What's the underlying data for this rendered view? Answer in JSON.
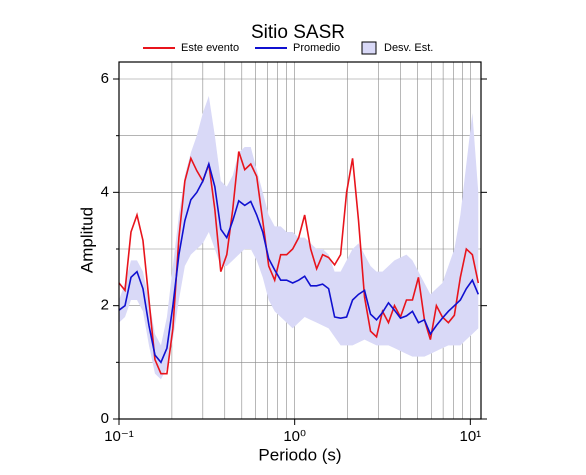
{
  "chart_data": {
    "type": "line",
    "title": "Sitio SASR",
    "xlabel": "Periodo (s)",
    "ylabel": "Amplitud",
    "xscale": "log",
    "xlim": [
      0.1,
      11.5
    ],
    "ylim": [
      0,
      6.3
    ],
    "xticks": [
      {
        "value": 0.1,
        "label": "10⁻¹"
      },
      {
        "value": 1,
        "label": "10⁰"
      },
      {
        "value": 10,
        "label": "10¹"
      }
    ],
    "yticks": [
      0,
      2,
      4,
      6
    ],
    "yminor": [
      1,
      3,
      5
    ],
    "grid": true,
    "legend": "top",
    "x": [
      0.1,
      0.1082,
      0.117,
      0.1266,
      0.1369,
      0.1481,
      0.1602,
      0.1733,
      0.1874,
      0.2027,
      0.2193,
      0.2371,
      0.2565,
      0.2774,
      0.3001,
      0.3246,
      0.3511,
      0.3797,
      0.4107,
      0.4442,
      0.4805,
      0.5197,
      0.5623,
      0.608,
      0.6579,
      0.7115,
      0.7697,
      0.8326,
      0.9006,
      0.9741,
      1.054,
      1.14,
      1.233,
      1.334,
      1.443,
      1.561,
      1.688,
      1.826,
      1.975,
      2.136,
      2.31,
      2.499,
      2.703,
      2.924,
      3.162,
      3.42,
      3.7,
      4.002,
      4.329,
      4.683,
      5.064,
      5.478,
      5.925,
      6.409,
      6.933,
      7.499,
      8.111,
      8.774,
      9.49,
      10.27,
      11.1
    ],
    "series": [
      {
        "name": "Desv. Est.",
        "kind": "band",
        "color": "#d9d9f7",
        "upper": [
          2.1,
          2.4,
          2.8,
          2.8,
          2.6,
          2.1,
          1.5,
          1.3,
          1.8,
          2.7,
          3.6,
          4.3,
          4.7,
          5.0,
          5.4,
          5.7,
          5.0,
          4.2,
          4.1,
          4.3,
          4.7,
          4.8,
          4.8,
          4.4,
          4.0,
          3.6,
          3.4,
          3.4,
          3.3,
          3.3,
          3.2,
          3.2,
          3.1,
          3.0,
          3.0,
          2.9,
          2.6,
          2.6,
          2.8,
          3.0,
          3.1,
          2.9,
          2.7,
          2.6,
          2.6,
          2.7,
          2.8,
          2.85,
          2.9,
          2.8,
          2.6,
          2.4,
          2.2,
          2.3,
          2.4,
          2.7,
          3.0,
          3.6,
          4.5,
          5.4,
          4.0
        ],
        "lower": [
          1.7,
          1.8,
          2.1,
          2.1,
          1.9,
          1.3,
          0.8,
          0.7,
          0.9,
          1.4,
          2.1,
          2.7,
          2.9,
          3.0,
          3.1,
          3.3,
          3.0,
          2.7,
          2.7,
          2.8,
          2.9,
          3.0,
          3.0,
          2.8,
          2.5,
          2.1,
          1.9,
          1.8,
          1.7,
          1.6,
          1.7,
          1.8,
          1.75,
          1.7,
          1.65,
          1.6,
          1.45,
          1.3,
          1.3,
          1.3,
          1.35,
          1.4,
          1.35,
          1.3,
          1.3,
          1.3,
          1.25,
          1.2,
          1.15,
          1.1,
          1.1,
          1.1,
          1.15,
          1.2,
          1.25,
          1.3,
          1.3,
          1.3,
          1.4,
          1.5,
          1.6
        ]
      },
      {
        "name": "Este evento",
        "color": "#e8141c",
        "values": [
          2.4,
          2.27,
          3.3,
          3.6,
          3.15,
          2.1,
          1.05,
          0.8,
          0.8,
          1.6,
          3.2,
          4.2,
          4.6,
          4.38,
          4.2,
          4.5,
          3.7,
          2.6,
          2.9,
          3.7,
          4.72,
          4.4,
          4.5,
          4.28,
          3.5,
          2.7,
          2.45,
          2.9,
          2.9,
          3.0,
          3.2,
          3.6,
          3.0,
          2.65,
          2.9,
          2.85,
          2.72,
          2.9,
          4.0,
          4.6,
          3.5,
          2.15,
          1.55,
          1.45,
          1.9,
          1.7,
          2.0,
          1.8,
          2.1,
          2.1,
          2.5,
          1.75,
          1.4,
          2.0,
          1.8,
          1.7,
          1.83,
          2.5,
          3.0,
          2.9,
          2.4
        ]
      },
      {
        "name": "Promedio",
        "color": "#1010d0",
        "values": [
          1.92,
          2.0,
          2.5,
          2.6,
          2.3,
          1.65,
          1.13,
          1.0,
          1.25,
          2.0,
          2.9,
          3.5,
          3.87,
          4.0,
          4.2,
          4.5,
          4.1,
          3.35,
          3.2,
          3.5,
          3.85,
          3.77,
          3.84,
          3.6,
          3.3,
          2.83,
          2.63,
          2.45,
          2.45,
          2.4,
          2.45,
          2.52,
          2.35,
          2.35,
          2.38,
          2.3,
          1.8,
          1.78,
          1.8,
          2.1,
          2.2,
          2.27,
          1.85,
          1.75,
          1.88,
          2.05,
          1.92,
          1.78,
          1.82,
          1.9,
          1.7,
          1.75,
          1.5,
          1.65,
          1.78,
          1.9,
          2.0,
          2.1,
          2.3,
          2.45,
          2.2
        ]
      }
    ]
  }
}
